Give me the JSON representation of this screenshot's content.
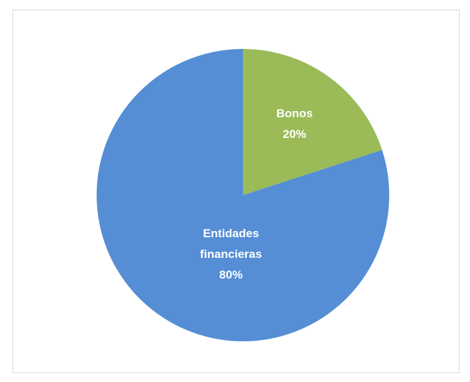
{
  "chart_data": {
    "type": "pie",
    "categories": [
      "Bonos",
      "Entidades financieras"
    ],
    "values": [
      20,
      80
    ],
    "value_labels": [
      "20%",
      "80%"
    ],
    "colors": [
      "#9bbb59",
      "#558ed5"
    ]
  }
}
